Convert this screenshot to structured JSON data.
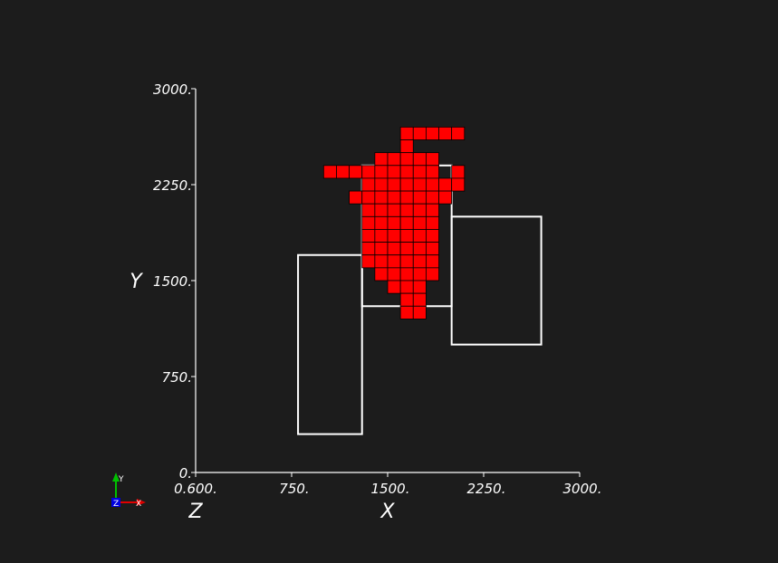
{
  "colors": {
    "background": "#1c1c1c",
    "axis": "#ffffff",
    "outline": "#ffffff",
    "cell_fill": "#ff0000",
    "cell_edge": "#000000",
    "triad_y": "#00c000",
    "triad_x": "#e00000",
    "triad_z": "#0000e0"
  },
  "chart_data": {
    "type": "scatter",
    "title": "",
    "xlabel": "X",
    "ylabel": "Y",
    "zlabel": "Z",
    "xlim": [
      0,
      3000
    ],
    "ylim": [
      0,
      3000
    ],
    "grid": false,
    "x_ticks": [
      "0.",
      "750.",
      "1500.",
      "2250.",
      "3000."
    ],
    "y_ticks": [
      "0.",
      "750.",
      "1500.",
      "2250.",
      "3000."
    ],
    "z_tick_overlap": "0.600.",
    "cell_size": 100,
    "rectangles": [
      {
        "x0": 800,
        "y0": 300,
        "x1": 1300,
        "y1": 1700
      },
      {
        "x0": 1300,
        "y0": 1300,
        "x1": 2000,
        "y1": 2400
      },
      {
        "x0": 2000,
        "y0": 1000,
        "x1": 2700,
        "y1": 2000
      }
    ],
    "cell_rows": [
      {
        "y": 2600,
        "x": [
          1600,
          1700,
          1800,
          1900,
          2000
        ]
      },
      {
        "y": 2500,
        "x": [
          1600
        ]
      },
      {
        "y": 2400,
        "x": [
          1400,
          1500,
          1600,
          1700,
          1800
        ]
      },
      {
        "y": 2300,
        "x": [
          1000,
          1100,
          1200,
          1300,
          1400,
          1500,
          1600,
          1700,
          1800,
          2000
        ]
      },
      {
        "y": 2200,
        "x": [
          1300,
          1400,
          1500,
          1600,
          1700,
          1800,
          1900,
          2000
        ]
      },
      {
        "y": 2100,
        "x": [
          1200,
          1300,
          1400,
          1500,
          1600,
          1700,
          1800,
          1900
        ]
      },
      {
        "y": 2000,
        "x": [
          1300,
          1400,
          1500,
          1600,
          1700,
          1800
        ]
      },
      {
        "y": 1900,
        "x": [
          1300,
          1400,
          1500,
          1600,
          1700,
          1800
        ]
      },
      {
        "y": 1800,
        "x": [
          1300,
          1400,
          1500,
          1600,
          1700,
          1800
        ]
      },
      {
        "y": 1700,
        "x": [
          1300,
          1400,
          1500,
          1600,
          1700,
          1800
        ]
      },
      {
        "y": 1600,
        "x": [
          1300,
          1400,
          1500,
          1600,
          1700,
          1800
        ]
      },
      {
        "y": 1500,
        "x": [
          1400,
          1500,
          1600,
          1700,
          1800
        ]
      },
      {
        "y": 1400,
        "x": [
          1500,
          1600,
          1700
        ]
      },
      {
        "y": 1300,
        "x": [
          1600,
          1700
        ]
      },
      {
        "y": 1200,
        "x": [
          1600,
          1700
        ]
      }
    ]
  },
  "orientation_triad": {
    "y_label": "Y",
    "x_label": "X",
    "z_label": "Z"
  }
}
